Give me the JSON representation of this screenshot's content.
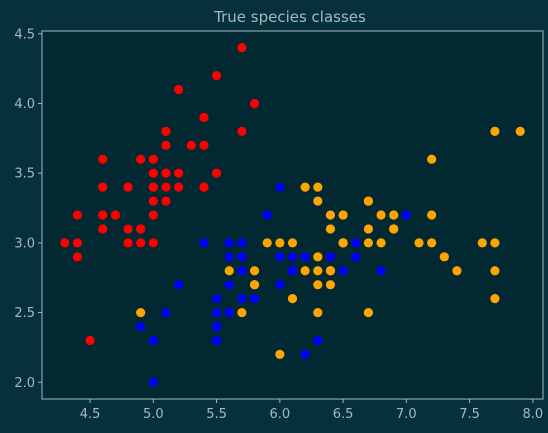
{
  "colors": {
    "figure_bg": "#06303b",
    "plot_bg": "#022832",
    "axis": "#a8b8bd",
    "setosa": "#ff0000",
    "versicolor": "#0000ff",
    "virginica": "#ffa500"
  },
  "chart_data": {
    "type": "scatter",
    "title": "True species classes",
    "xlabel": "",
    "ylabel": "",
    "xlim": [
      4.12,
      8.08
    ],
    "ylim": [
      1.88,
      4.52
    ],
    "xticks": [
      4.5,
      5.0,
      5.5,
      6.0,
      6.5,
      7.0,
      7.5,
      8.0
    ],
    "xtick_labels": [
      "4.5",
      "5.0",
      "5.5",
      "6.0",
      "6.5",
      "7.0",
      "7.5",
      "8.0"
    ],
    "yticks": [
      2.0,
      2.5,
      3.0,
      3.5,
      4.0,
      4.5
    ],
    "ytick_labels": [
      "2.0",
      "2.5",
      "3.0",
      "3.5",
      "4.0",
      "4.5"
    ],
    "grid": false,
    "legend": "none",
    "series": [
      {
        "color": "#ff0000",
        "points": [
          [
            5.1,
            3.5
          ],
          [
            4.9,
            3.0
          ],
          [
            4.7,
            3.2
          ],
          [
            4.6,
            3.1
          ],
          [
            5.0,
            3.6
          ],
          [
            5.4,
            3.9
          ],
          [
            4.6,
            3.4
          ],
          [
            5.0,
            3.4
          ],
          [
            4.4,
            2.9
          ],
          [
            4.9,
            3.1
          ],
          [
            5.4,
            3.7
          ],
          [
            4.8,
            3.4
          ],
          [
            4.8,
            3.0
          ],
          [
            4.3,
            3.0
          ],
          [
            5.8,
            4.0
          ],
          [
            5.7,
            4.4
          ],
          [
            5.4,
            3.9
          ],
          [
            5.1,
            3.5
          ],
          [
            5.7,
            3.8
          ],
          [
            5.1,
            3.8
          ],
          [
            5.4,
            3.4
          ],
          [
            5.1,
            3.7
          ],
          [
            4.6,
            3.6
          ],
          [
            5.1,
            3.3
          ],
          [
            4.8,
            3.4
          ],
          [
            5.0,
            3.0
          ],
          [
            5.0,
            3.4
          ],
          [
            5.2,
            3.5
          ],
          [
            5.2,
            3.4
          ],
          [
            4.7,
            3.2
          ],
          [
            4.8,
            3.1
          ],
          [
            5.4,
            3.4
          ],
          [
            5.2,
            4.1
          ],
          [
            5.5,
            4.2
          ],
          [
            4.9,
            3.1
          ],
          [
            5.0,
            3.2
          ],
          [
            5.5,
            3.5
          ],
          [
            4.9,
            3.6
          ],
          [
            4.4,
            3.0
          ],
          [
            5.1,
            3.4
          ],
          [
            5.0,
            3.5
          ],
          [
            4.5,
            2.3
          ],
          [
            4.4,
            3.2
          ],
          [
            5.0,
            3.5
          ],
          [
            5.1,
            3.8
          ],
          [
            4.8,
            3.0
          ],
          [
            5.1,
            3.8
          ],
          [
            4.6,
            3.2
          ],
          [
            5.3,
            3.7
          ],
          [
            5.0,
            3.3
          ]
        ]
      },
      {
        "color": "#0000ff",
        "points": [
          [
            7.0,
            3.2
          ],
          [
            6.4,
            3.2
          ],
          [
            6.9,
            3.1
          ],
          [
            5.5,
            2.3
          ],
          [
            6.5,
            2.8
          ],
          [
            5.7,
            2.8
          ],
          [
            6.3,
            3.3
          ],
          [
            4.9,
            2.4
          ],
          [
            6.6,
            2.9
          ],
          [
            5.2,
            2.7
          ],
          [
            5.0,
            2.0
          ],
          [
            5.9,
            3.0
          ],
          [
            6.0,
            2.2
          ],
          [
            6.1,
            2.9
          ],
          [
            5.6,
            2.9
          ],
          [
            6.7,
            3.1
          ],
          [
            5.6,
            3.0
          ],
          [
            5.8,
            2.7
          ],
          [
            6.2,
            2.2
          ],
          [
            5.6,
            2.5
          ],
          [
            5.9,
            3.2
          ],
          [
            6.1,
            2.8
          ],
          [
            6.3,
            2.5
          ],
          [
            6.1,
            2.8
          ],
          [
            6.4,
            2.9
          ],
          [
            6.6,
            3.0
          ],
          [
            6.8,
            2.8
          ],
          [
            6.7,
            3.0
          ],
          [
            6.0,
            2.9
          ],
          [
            5.7,
            2.6
          ],
          [
            5.5,
            2.4
          ],
          [
            5.5,
            2.4
          ],
          [
            5.8,
            2.7
          ],
          [
            6.0,
            2.7
          ],
          [
            5.4,
            3.0
          ],
          [
            6.0,
            3.4
          ],
          [
            6.7,
            3.1
          ],
          [
            6.3,
            2.3
          ],
          [
            5.6,
            3.0
          ],
          [
            5.5,
            2.5
          ],
          [
            5.5,
            2.6
          ],
          [
            6.1,
            3.0
          ],
          [
            5.8,
            2.6
          ],
          [
            5.0,
            2.3
          ],
          [
            5.6,
            2.7
          ],
          [
            5.7,
            3.0
          ],
          [
            5.7,
            2.9
          ],
          [
            6.2,
            2.9
          ],
          [
            5.1,
            2.5
          ],
          [
            5.7,
            2.8
          ]
        ]
      },
      {
        "color": "#ffa500",
        "points": [
          [
            6.3,
            3.3
          ],
          [
            5.8,
            2.7
          ],
          [
            7.1,
            3.0
          ],
          [
            6.3,
            2.9
          ],
          [
            6.5,
            3.0
          ],
          [
            7.6,
            3.0
          ],
          [
            4.9,
            2.5
          ],
          [
            7.3,
            2.9
          ],
          [
            6.7,
            2.5
          ],
          [
            7.2,
            3.6
          ],
          [
            6.5,
            3.2
          ],
          [
            6.4,
            2.7
          ],
          [
            6.8,
            3.0
          ],
          [
            5.7,
            2.5
          ],
          [
            5.8,
            2.8
          ],
          [
            6.4,
            3.2
          ],
          [
            6.5,
            3.0
          ],
          [
            7.7,
            3.8
          ],
          [
            7.7,
            2.6
          ],
          [
            6.0,
            2.2
          ],
          [
            6.9,
            3.2
          ],
          [
            5.6,
            2.8
          ],
          [
            7.7,
            2.8
          ],
          [
            6.3,
            2.7
          ],
          [
            6.7,
            3.3
          ],
          [
            7.2,
            3.2
          ],
          [
            6.2,
            2.8
          ],
          [
            6.1,
            3.0
          ],
          [
            6.4,
            2.8
          ],
          [
            7.2,
            3.0
          ],
          [
            7.4,
            2.8
          ],
          [
            7.9,
            3.8
          ],
          [
            6.4,
            2.8
          ],
          [
            6.3,
            2.8
          ],
          [
            6.1,
            2.6
          ],
          [
            7.7,
            3.0
          ],
          [
            6.3,
            3.4
          ],
          [
            6.4,
            3.1
          ],
          [
            6.0,
            3.0
          ],
          [
            6.9,
            3.1
          ],
          [
            6.7,
            3.1
          ],
          [
            6.9,
            3.1
          ],
          [
            5.8,
            2.7
          ],
          [
            6.8,
            3.2
          ],
          [
            6.7,
            3.3
          ],
          [
            6.7,
            3.0
          ],
          [
            6.3,
            2.5
          ],
          [
            6.5,
            3.0
          ],
          [
            6.2,
            3.4
          ],
          [
            5.9,
            3.0
          ]
        ]
      }
    ]
  }
}
